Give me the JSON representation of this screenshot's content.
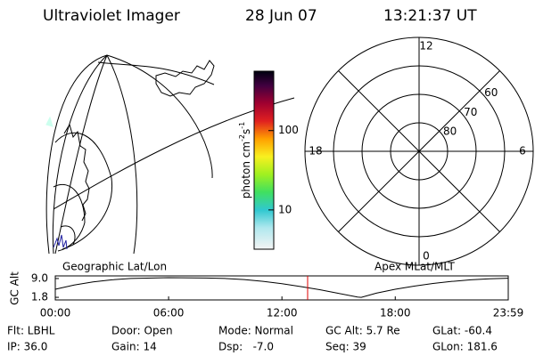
{
  "header": {
    "instrument": "Ultraviolet Imager",
    "date": "28 Jun 07",
    "time": "13:21:37 UT"
  },
  "colorbar": {
    "label": "photon cm",
    "label_exp1": "-2",
    "label_unit2": "s",
    "label_exp2": "-1",
    "scale": "log",
    "lim": [
      3.2,
      560
    ],
    "ticks": [
      10,
      100
    ]
  },
  "polar": {
    "rlim": [
      90,
      50
    ],
    "lat_ticks": [
      80,
      70,
      60
    ],
    "mlt_ticks": [
      12,
      18,
      6,
      0
    ]
  },
  "timeline": {
    "left_title": "Geographic Lat/Lon",
    "right_title": "Apex MLat/MLT",
    "ylabel": "GC Alt",
    "ylim": [
      0.8,
      10.0
    ],
    "yticks": [
      {
        "value": 9,
        "label": "9.0"
      },
      {
        "value": 1.8,
        "label": "1.8"
      }
    ],
    "xlim": [
      0,
      23.983
    ],
    "xticks": [
      {
        "value": 0,
        "label": "00:00"
      },
      {
        "value": 6,
        "label": "06:00"
      },
      {
        "value": 12,
        "label": "12:00"
      },
      {
        "value": 18,
        "label": "18:00"
      },
      {
        "value": 23.983,
        "label": "23:59"
      }
    ],
    "x": [
      0,
      1,
      2,
      3,
      4,
      6,
      8,
      9,
      10,
      11,
      12,
      13,
      14,
      15,
      16,
      16.2,
      17,
      18,
      19,
      20,
      21,
      22,
      23,
      23.983
    ],
    "values": [
      4.9,
      6.5,
      7.7,
      8.5,
      9.0,
      9.3,
      9.2,
      9.0,
      8.6,
      7.9,
      7.0,
      5.9,
      4.7,
      3.3,
      1.9,
      1.8,
      3.4,
      4.9,
      6.1,
      7.1,
      7.9,
      8.5,
      8.9,
      9.1
    ],
    "current_time": 13.36,
    "line_color": "#000000",
    "marker_color": "#e00000"
  },
  "footer": {
    "rows": [
      [
        "Flt: LBHL",
        "Door: Open",
        "Mode: Normal",
        "GC Alt: 5.7 Re",
        "GLat: -60.4"
      ],
      [
        "IP: 36.0",
        "Gain: 14",
        "Dsp:   -7.0",
        "Seq: 39",
        "GLon: 181.6"
      ]
    ]
  }
}
